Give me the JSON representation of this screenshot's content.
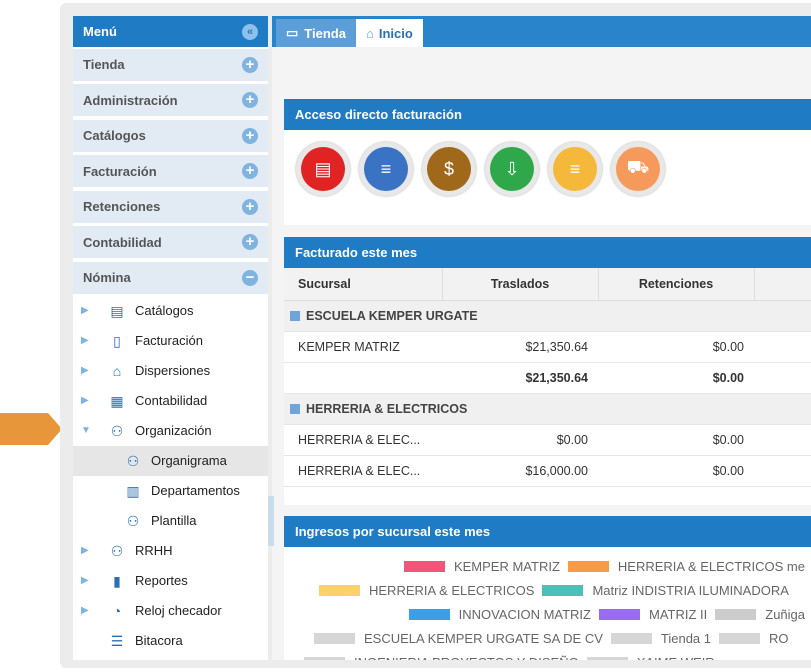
{
  "sidebar": {
    "title": "Menú",
    "items": [
      {
        "label": "Tienda"
      },
      {
        "label": "Administración"
      },
      {
        "label": "Catálogos"
      },
      {
        "label": "Facturación"
      },
      {
        "label": "Retenciones"
      },
      {
        "label": "Contabilidad"
      },
      {
        "label": "Nómina",
        "expanded": true
      }
    ],
    "nomina_items": [
      {
        "label": "Catálogos",
        "icon": "table-icon"
      },
      {
        "label": "Facturación",
        "icon": "document-icon"
      },
      {
        "label": "Dispersiones",
        "icon": "bank-icon"
      },
      {
        "label": "Contabilidad",
        "icon": "ledger-icon"
      },
      {
        "label": "Organización",
        "icon": "people-icon",
        "expanded": true
      },
      {
        "label": "Organigrama",
        "icon": "org-chart-icon",
        "selected": true
      },
      {
        "label": "Departamentos",
        "icon": "building-icon"
      },
      {
        "label": "Plantilla",
        "icon": "user-group-icon"
      },
      {
        "label": "RRHH",
        "icon": "people-icon"
      },
      {
        "label": "Reportes",
        "icon": "report-icon"
      },
      {
        "label": "Reloj checador",
        "icon": "clock-user-icon"
      },
      {
        "label": "Bitacora",
        "icon": "list-icon"
      }
    ]
  },
  "tabs": [
    {
      "label": "Tienda"
    },
    {
      "label": "Inicio",
      "active": true
    }
  ],
  "acceso": {
    "title": "Acceso directo facturación",
    "colors": [
      "#e02424",
      "#3b73c4",
      "#a0681a",
      "#2ea84a",
      "#f5b83a",
      "#f59a5a"
    ]
  },
  "facturado": {
    "title": "Facturado este mes",
    "columns": [
      "Sucursal",
      "Traslados",
      "Retenciones"
    ],
    "groups": [
      {
        "name": "ESCUELA KEMPER URGATE",
        "rows": [
          [
            "KEMPER MATRIZ",
            "$21,350.64",
            "$0.00"
          ],
          [
            "",
            "$21,350.64",
            "$0.00"
          ]
        ]
      },
      {
        "name": "HERRERIA & ELECTRICOS",
        "rows": [
          [
            "HERRERIA & ELEC...",
            "$0.00",
            "$0.00"
          ],
          [
            "HERRERIA & ELEC...",
            "$16,000.00",
            "$0.00"
          ]
        ]
      }
    ]
  },
  "ingresos": {
    "title": "Ingresos por sucursal este mes",
    "legend": [
      [
        {
          "label": "KEMPER MATRIZ",
          "color": "#f0557a"
        },
        {
          "label": "HERRERIA & ELECTRICOS me",
          "color": "#f79a4a"
        }
      ],
      [
        {
          "label": "HERRERIA & ELECTRICOS",
          "color": "#fcd06a"
        },
        {
          "label": "Matriz INDISTRIA ILUMINADORA",
          "color": "#4cc0b8"
        }
      ],
      [
        {
          "label": "INNOVACION MATRIZ",
          "color": "#3b9ee6"
        },
        {
          "label": "MATRIZ II",
          "color": "#9a6cf0"
        },
        {
          "label": "Zuñiga",
          "color": "#cccccc"
        }
      ],
      [
        {
          "label": "ESCUELA KEMPER URGATE SA DE CV",
          "color": "#d6d6d6"
        },
        {
          "label": "Tienda 1",
          "color": "#d6d6d6"
        },
        {
          "label": "RO",
          "color": "#d6d6d6"
        }
      ],
      [
        {
          "label": "INGENIERIA PROYECTOS Y DISEÑO",
          "color": "#d6d6d6"
        },
        {
          "label": "XAIME WEIR",
          "color": "#d6d6d6"
        }
      ]
    ]
  }
}
